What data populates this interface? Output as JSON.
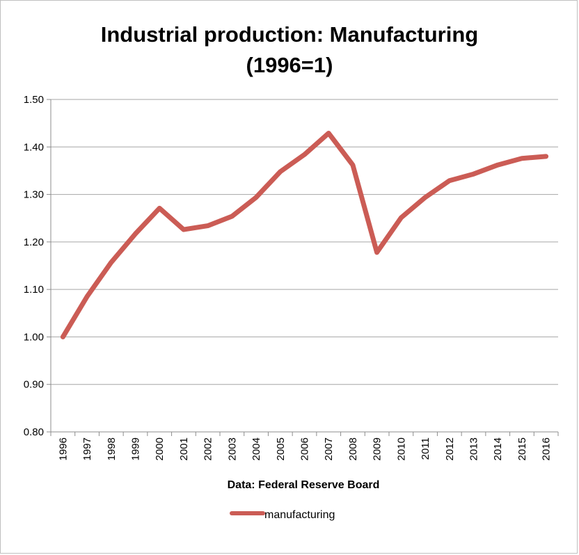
{
  "chart_data": {
    "type": "line",
    "title": [
      "Industrial production: Manufacturing",
      "(1996=1)"
    ],
    "xlabel": "Data: Federal Reserve Board",
    "ylabel": "",
    "ylim": [
      0.8,
      1.5
    ],
    "ytick_step": 0.1,
    "y_tick_labels": [
      "0.80",
      "0.90",
      "1.00",
      "1.10",
      "1.20",
      "1.30",
      "1.40",
      "1.50"
    ],
    "grid": "horizontal",
    "legend_position": "bottom",
    "categories": [
      "1996",
      "1997",
      "1998",
      "1999",
      "2000",
      "2001",
      "2002",
      "2003",
      "2004",
      "2005",
      "2006",
      "2007",
      "2008",
      "2009",
      "2010",
      "2011",
      "2012",
      "2013",
      "2014",
      "2015",
      "2016"
    ],
    "series": [
      {
        "name": "manufacturing",
        "color": "#cb5c55",
        "values": [
          1.0,
          1.085,
          1.157,
          1.217,
          1.271,
          1.226,
          1.234,
          1.254,
          1.294,
          1.348,
          1.384,
          1.429,
          1.362,
          1.178,
          1.251,
          1.294,
          1.329,
          1.343,
          1.362,
          1.376,
          1.38
        ]
      }
    ]
  }
}
